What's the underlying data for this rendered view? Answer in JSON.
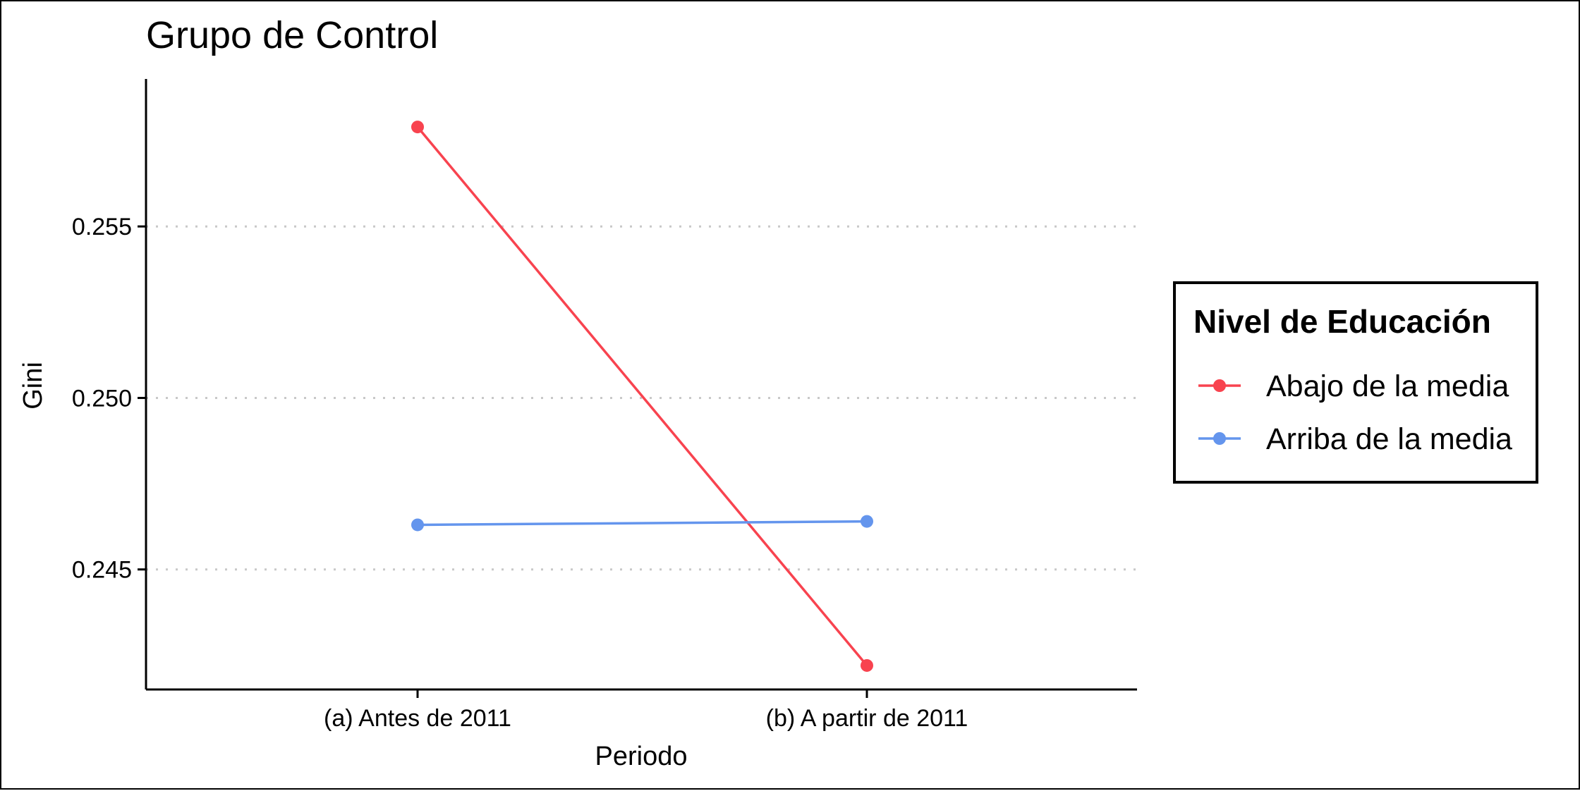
{
  "chart_data": {
    "type": "line",
    "title": "Grupo de Control",
    "xlabel": "Periodo",
    "ylabel": "Gini",
    "categories": [
      "(a) Antes de 2011",
      "(b) A partir de 2011"
    ],
    "ylim": [
      0.2415,
      0.2593
    ],
    "yticks": [
      0.245,
      0.25,
      0.255
    ],
    "ytick_labels": [
      "0.245",
      "0.250",
      "0.255"
    ],
    "grid": "horizontal dotted (major y)",
    "legend": {
      "title": "Nivel de Educación",
      "placement": "right"
    },
    "series": [
      {
        "name": "Abajo de la media",
        "values": [
          0.2579,
          0.2422
        ],
        "color": "#F8434F"
      },
      {
        "name": "Arriba de la media",
        "values": [
          0.2463,
          0.2464
        ],
        "color": "#6495ED"
      }
    ]
  }
}
